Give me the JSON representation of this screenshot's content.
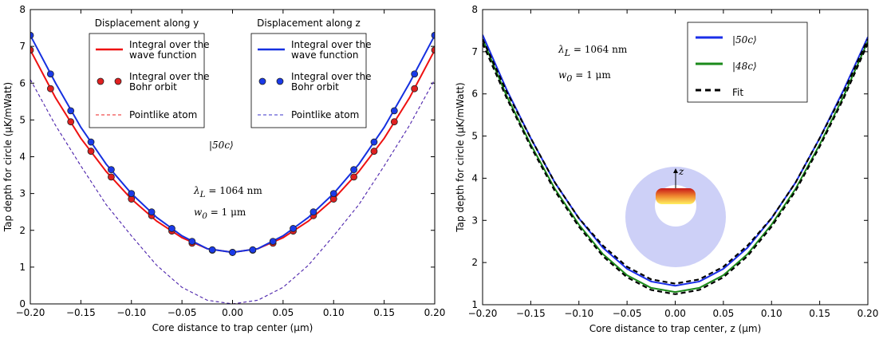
{
  "chart_data": [
    {
      "type": "line",
      "xlabel": "Core distance to trap center (μm)",
      "ylabel": "Tap depth for circle (μK/mWatt)",
      "xlim": [
        -0.2,
        0.2
      ],
      "ylim": [
        0,
        8
      ],
      "xticks": [
        {
          "value": -0.2,
          "label": "−0.20"
        },
        {
          "value": -0.15,
          "label": "−0.15"
        },
        {
          "value": -0.1,
          "label": "−0.10"
        },
        {
          "value": -0.05,
          "label": "−0.05"
        },
        {
          "value": 0,
          "label": "0.00"
        },
        0.05,
        {
          "value": 0.1,
          "label": "0.10"
        },
        0.15,
        {
          "value": 0.2,
          "label": "0.20"
        }
      ],
      "yticks": [
        0,
        1,
        2,
        3,
        4,
        5,
        6,
        7,
        8
      ],
      "x": [
        -0.2,
        -0.175,
        -0.15,
        -0.125,
        -0.1,
        -0.075,
        -0.05,
        -0.025,
        0,
        0.025,
        0.05,
        0.075,
        0.1,
        0.125,
        0.15,
        0.175,
        0.2
      ],
      "legend_titles": [
        "Displacement along y",
        "Displacement along z"
      ],
      "annotations": [
        {
          "text": "|50c⟩"
        },
        {
          "base": "λ",
          "sub": "L",
          "rest": " = 1064 nm"
        },
        {
          "base": "w",
          "sub": "0",
          "rest": " = 1 μm"
        }
      ],
      "series": [
        {
          "name": "Integral over the wave function",
          "color": "#ee1111",
          "style": "line",
          "legend_group": 0,
          "values": [
            6.9,
            5.6,
            4.5,
            3.6,
            2.85,
            2.25,
            1.8,
            1.5,
            1.4,
            1.5,
            1.8,
            2.25,
            2.85,
            3.6,
            4.5,
            5.6,
            6.9
          ]
        },
        {
          "name": "Integral over the Bohr orbit",
          "color": "#e02020",
          "style": "markers",
          "legend_group": 0,
          "x": [
            -0.2,
            -0.18,
            -0.16,
            -0.14,
            -0.12,
            -0.1,
            -0.08,
            -0.06,
            -0.04,
            -0.02,
            0,
            0.02,
            0.04,
            0.06,
            0.08,
            0.1,
            0.12,
            0.14,
            0.16,
            0.18,
            0.2
          ],
          "values": [
            6.9,
            5.85,
            4.95,
            4.15,
            3.45,
            2.85,
            2.4,
            1.98,
            1.65,
            1.46,
            1.4,
            1.46,
            1.65,
            1.98,
            2.4,
            2.85,
            3.45,
            4.15,
            4.95,
            5.85,
            6.9
          ]
        },
        {
          "name": "Pointlike atom",
          "color": "#ee2222",
          "style": "dashed",
          "legend_group": 0,
          "values": [
            6.1,
            4.85,
            3.75,
            2.7,
            1.85,
            1.05,
            0.45,
            0.1,
            0,
            0.1,
            0.45,
            1.05,
            1.85,
            2.7,
            3.75,
            4.85,
            6.1
          ]
        },
        {
          "name": "Integral over the wave function",
          "color": "#1530e0",
          "style": "line",
          "legend_group": 1,
          "values": [
            7.3,
            6.0,
            4.8,
            3.8,
            3.0,
            2.35,
            1.85,
            1.5,
            1.4,
            1.5,
            1.85,
            2.35,
            3.0,
            3.8,
            4.8,
            6.0,
            7.3
          ]
        },
        {
          "name": "Integral over the Bohr orbit",
          "color": "#1a3ae8",
          "style": "markers",
          "legend_group": 1,
          "x": [
            -0.2,
            -0.18,
            -0.16,
            -0.14,
            -0.12,
            -0.1,
            -0.08,
            -0.06,
            -0.04,
            -0.02,
            0,
            0.02,
            0.04,
            0.06,
            0.08,
            0.1,
            0.12,
            0.14,
            0.16,
            0.18,
            0.2
          ],
          "values": [
            7.3,
            6.25,
            5.25,
            4.4,
            3.65,
            3.0,
            2.5,
            2.05,
            1.7,
            1.47,
            1.4,
            1.47,
            1.7,
            2.05,
            2.5,
            3.0,
            3.65,
            4.4,
            5.25,
            6.25,
            7.3
          ]
        },
        {
          "name": "Pointlike atom",
          "color": "#3a30c8",
          "style": "dashed",
          "legend_group": 1,
          "values": [
            6.1,
            4.85,
            3.75,
            2.7,
            1.85,
            1.05,
            0.45,
            0.1,
            0,
            0.1,
            0.45,
            1.05,
            1.85,
            2.7,
            3.75,
            4.85,
            6.1
          ]
        }
      ]
    },
    {
      "type": "line",
      "xlabel": "Core distance to trap center, z (μm)",
      "ylabel": "Tap depth for circle (μK/mWatt)",
      "xlim": [
        -0.2,
        0.2
      ],
      "ylim": [
        1,
        8
      ],
      "xticks": [
        {
          "value": -0.2,
          "label": "−0.20"
        },
        {
          "value": -0.15,
          "label": "−0.15"
        },
        {
          "value": -0.1,
          "label": "−0.10"
        },
        {
          "value": -0.05,
          "label": "−0.05"
        },
        {
          "value": 0,
          "label": "0.00"
        },
        0.05,
        {
          "value": 0.1,
          "label": "0.10"
        },
        0.15,
        {
          "value": 0.2,
          "label": "0.20"
        }
      ],
      "yticks": [
        1,
        2,
        3,
        4,
        5,
        6,
        7,
        8
      ],
      "x": [
        -0.2,
        -0.175,
        -0.15,
        -0.125,
        -0.1,
        -0.075,
        -0.05,
        -0.025,
        0,
        0.025,
        0.05,
        0.075,
        0.1,
        0.125,
        0.15,
        0.175,
        0.2
      ],
      "legend": "upper right",
      "annotations": [
        {
          "base": "λ",
          "sub": "L",
          "rest": " = 1064 nm"
        },
        {
          "base": "w",
          "sub": "0",
          "rest": " = 1 μm"
        }
      ],
      "inset_label": "z",
      "series": [
        {
          "name": "|50c⟩",
          "color": "#1a2ee8",
          "style": "line",
          "values": [
            7.4,
            6.1,
            4.95,
            3.9,
            3.05,
            2.35,
            1.85,
            1.55,
            1.45,
            1.55,
            1.85,
            2.35,
            3.05,
            3.9,
            4.95,
            6.1,
            7.35
          ]
        },
        {
          "name": "|48c⟩",
          "color": "#1a8a1a",
          "style": "line",
          "values": [
            7.3,
            5.95,
            4.8,
            3.75,
            2.9,
            2.2,
            1.7,
            1.4,
            1.3,
            1.4,
            1.7,
            2.2,
            2.9,
            3.75,
            4.8,
            5.95,
            7.25
          ]
        },
        {
          "name": "Fit",
          "color": "#000000",
          "style": "dashed",
          "values": [
            7.3,
            6.05,
            4.95,
            3.9,
            3.05,
            2.4,
            1.9,
            1.6,
            1.5,
            1.6,
            1.9,
            2.4,
            3.05,
            3.9,
            4.95,
            6.05,
            7.3
          ]
        },
        {
          "color": "#000000",
          "style": "dashed",
          "values": [
            7.2,
            5.9,
            4.75,
            3.7,
            2.85,
            2.15,
            1.65,
            1.35,
            1.25,
            1.35,
            1.65,
            2.15,
            2.85,
            3.7,
            4.75,
            5.9,
            7.2
          ]
        }
      ]
    }
  ]
}
